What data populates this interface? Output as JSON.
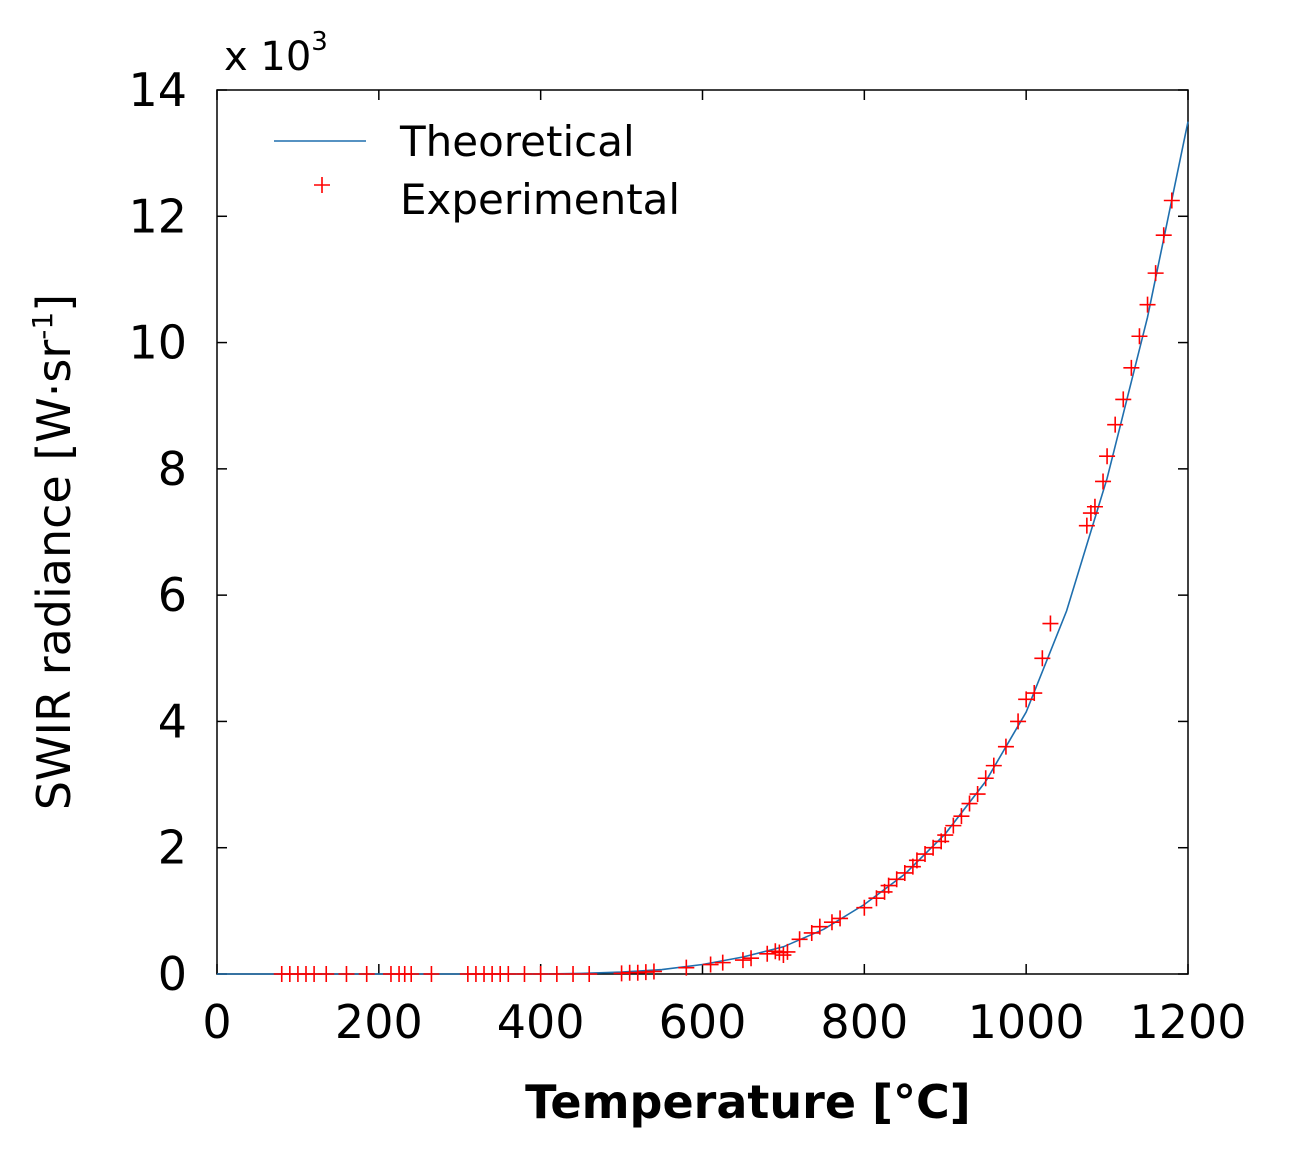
{
  "chart_data": {
    "type": "line",
    "xlabel": "Temperature [°C]",
    "ylabel_main": "SWIR radiance [W·sr",
    "ylabel_sup": "-1",
    "ylabel_close": "]",
    "y_multiplier_prefix": "x 10",
    "y_multiplier_sup": "3",
    "xlim": [
      0,
      1200
    ],
    "ylim": [
      0,
      14
    ],
    "x_ticks": [
      0,
      200,
      400,
      600,
      800,
      1000,
      1200
    ],
    "y_ticks": [
      0,
      2,
      4,
      6,
      8,
      10,
      12,
      14
    ],
    "grid": false,
    "legend_position": "top-left",
    "colors": {
      "theoretical": "#1f6fae",
      "experimental": "#ff0000"
    },
    "series": [
      {
        "name": "Theoretical",
        "style": "line",
        "x": [
          0,
          100,
          200,
          300,
          400,
          450,
          500,
          550,
          600,
          650,
          700,
          750,
          800,
          850,
          900,
          950,
          1000,
          1050,
          1100,
          1150,
          1200
        ],
        "y": [
          0,
          0,
          0,
          0,
          0,
          0.01,
          0.03,
          0.07,
          0.15,
          0.27,
          0.43,
          0.71,
          1.1,
          1.58,
          2.22,
          3.05,
          4.15,
          5.75,
          7.85,
          10.4,
          13.5
        ]
      },
      {
        "name": "Experimental",
        "style": "markers",
        "marker": "+",
        "x": [
          80,
          90,
          100,
          110,
          120,
          135,
          160,
          185,
          215,
          225,
          232,
          240,
          265,
          310,
          320,
          330,
          340,
          350,
          360,
          380,
          400,
          420,
          440,
          460,
          500,
          510,
          520,
          530,
          540,
          580,
          610,
          625,
          650,
          660,
          680,
          690,
          695,
          700,
          705,
          720,
          735,
          745,
          760,
          770,
          800,
          815,
          825,
          830,
          840,
          850,
          860,
          865,
          875,
          885,
          895,
          900,
          910,
          920,
          930,
          940,
          950,
          960,
          975,
          990,
          1000,
          1010,
          1020,
          1030,
          1075,
          1080,
          1085,
          1095,
          1100,
          1110,
          1120,
          1130,
          1140,
          1150,
          1160,
          1170,
          1180
        ],
        "y": [
          0,
          0,
          0,
          0,
          0,
          0,
          0,
          0,
          0,
          0,
          0,
          0,
          0,
          0,
          0,
          0,
          0,
          0,
          0,
          0,
          0,
          0,
          0,
          0,
          0.01,
          0.02,
          0.02,
          0.03,
          0.04,
          0.1,
          0.15,
          0.18,
          0.22,
          0.25,
          0.32,
          0.36,
          0.34,
          0.3,
          0.35,
          0.55,
          0.65,
          0.75,
          0.82,
          0.88,
          1.05,
          1.2,
          1.3,
          1.4,
          1.5,
          1.6,
          1.7,
          1.8,
          1.9,
          2.0,
          2.1,
          2.2,
          2.35,
          2.5,
          2.7,
          2.85,
          3.1,
          3.3,
          3.6,
          4.0,
          4.35,
          4.45,
          5.0,
          5.55,
          7.1,
          7.3,
          7.4,
          7.8,
          8.2,
          8.7,
          9.1,
          9.6,
          10.1,
          10.6,
          11.1,
          11.7,
          12.25
        ]
      }
    ]
  }
}
